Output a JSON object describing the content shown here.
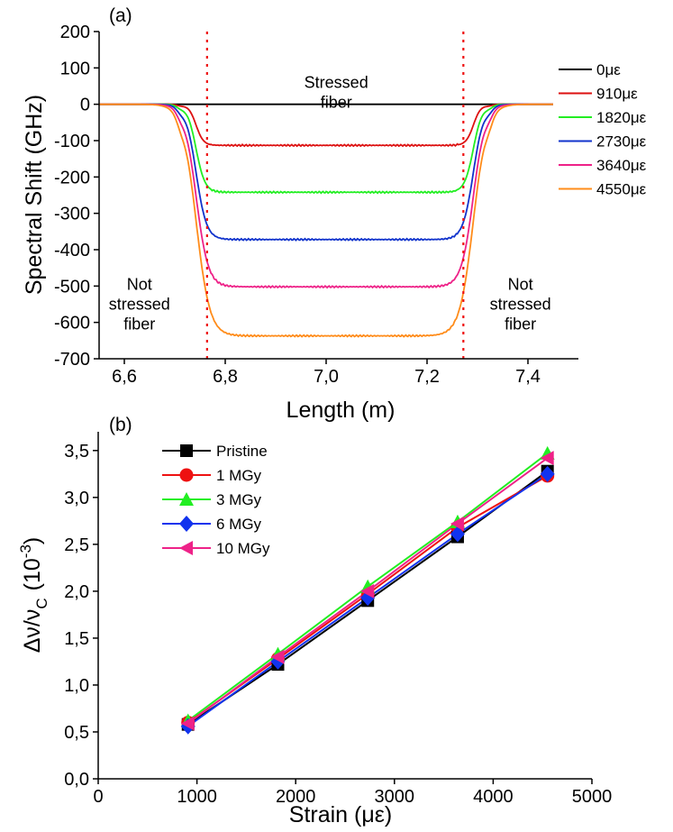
{
  "chart_data": [
    {
      "panel_label": "(a)",
      "type": "line",
      "xlabel": "Length (m)",
      "ylabel": "Spectral Shift (GHz)",
      "xlim": [
        6.55,
        7.5
      ],
      "ylim": [
        -700,
        200
      ],
      "x_ticks": [
        "6,6",
        "6,8",
        "7,0",
        "7,2",
        "7,4"
      ],
      "x_tick_values": [
        6.6,
        6.8,
        7.0,
        7.2,
        7.4
      ],
      "y_ticks": [
        "200",
        "100",
        "0",
        "-100",
        "-200",
        "-300",
        "-400",
        "-500",
        "-600",
        "-700"
      ],
      "y_tick_values": [
        200,
        100,
        0,
        -100,
        -200,
        -300,
        -400,
        -500,
        -600,
        -700
      ],
      "vlines": [
        6.764,
        7.272
      ],
      "vline_color": "#ee1111",
      "annotations": [
        {
          "lines": [
            "Stressed",
            "fiber"
          ],
          "x": 7.02,
          "y": 45
        },
        {
          "lines": [
            "Not",
            "stressed",
            "fiber"
          ],
          "x": 6.63,
          "y": -510
        },
        {
          "lines": [
            "Not",
            "stressed",
            "fiber"
          ],
          "x": 7.385,
          "y": -510
        }
      ],
      "legend_position": "right",
      "series": [
        {
          "name": "0με",
          "plateau": 0,
          "color": "#000000"
        },
        {
          "name": "910με",
          "plateau": -113,
          "color": "#dd1111"
        },
        {
          "name": "1820με",
          "plateau": -242,
          "color": "#22ee22"
        },
        {
          "name": "2730με",
          "plateau": -372,
          "color": "#1133cc"
        },
        {
          "name": "3640με",
          "plateau": -502,
          "color": "#ee2288"
        },
        {
          "name": "4550με",
          "plateau": -637,
          "color": "#ff8c1a"
        }
      ],
      "x_start": 6.55,
      "x_end": 7.45
    },
    {
      "panel_label": "(b)",
      "type": "line",
      "xlabel": "Strain (με)",
      "ylabel": "Δν/ν",
      "ylabel_sub": "C",
      "ylabel_unit": "(10",
      "ylabel_exp": "-3",
      "ylabel_close": ")",
      "xlim": [
        0,
        5000
      ],
      "ylim": [
        0,
        3.7
      ],
      "x_ticks": [
        "0",
        "1000",
        "2000",
        "3000",
        "4000",
        "5000"
      ],
      "x_tick_values": [
        0,
        1000,
        2000,
        3000,
        4000,
        5000
      ],
      "y_ticks": [
        "0,0",
        "0,5",
        "1,0",
        "1,5",
        "2,0",
        "2,5",
        "3,0",
        "3,5"
      ],
      "y_tick_values": [
        0,
        0.5,
        1.0,
        1.5,
        2.0,
        2.5,
        3.0,
        3.5
      ],
      "legend_position": "top-left",
      "x": [
        910,
        1820,
        2730,
        3640,
        4550
      ],
      "series": [
        {
          "name": "Pristine",
          "values": [
            0.58,
            1.22,
            1.9,
            2.58,
            3.28
          ],
          "color": "#000000",
          "marker": "square"
        },
        {
          "name": "1 MGy",
          "values": [
            0.6,
            1.28,
            1.97,
            2.68,
            3.23
          ],
          "color": "#ee1111",
          "marker": "circle"
        },
        {
          "name": "3 MGy",
          "values": [
            0.62,
            1.33,
            2.05,
            2.74,
            3.47
          ],
          "color": "#22ee22",
          "marker": "triangle-up"
        },
        {
          "name": "6 MGy",
          "values": [
            0.56,
            1.25,
            1.93,
            2.61,
            3.25
          ],
          "color": "#1133ee",
          "marker": "diamond"
        },
        {
          "name": "10 MGy",
          "values": [
            0.59,
            1.3,
            2.0,
            2.72,
            3.42
          ],
          "color": "#ee2288",
          "marker": "triangle-left"
        }
      ]
    }
  ]
}
